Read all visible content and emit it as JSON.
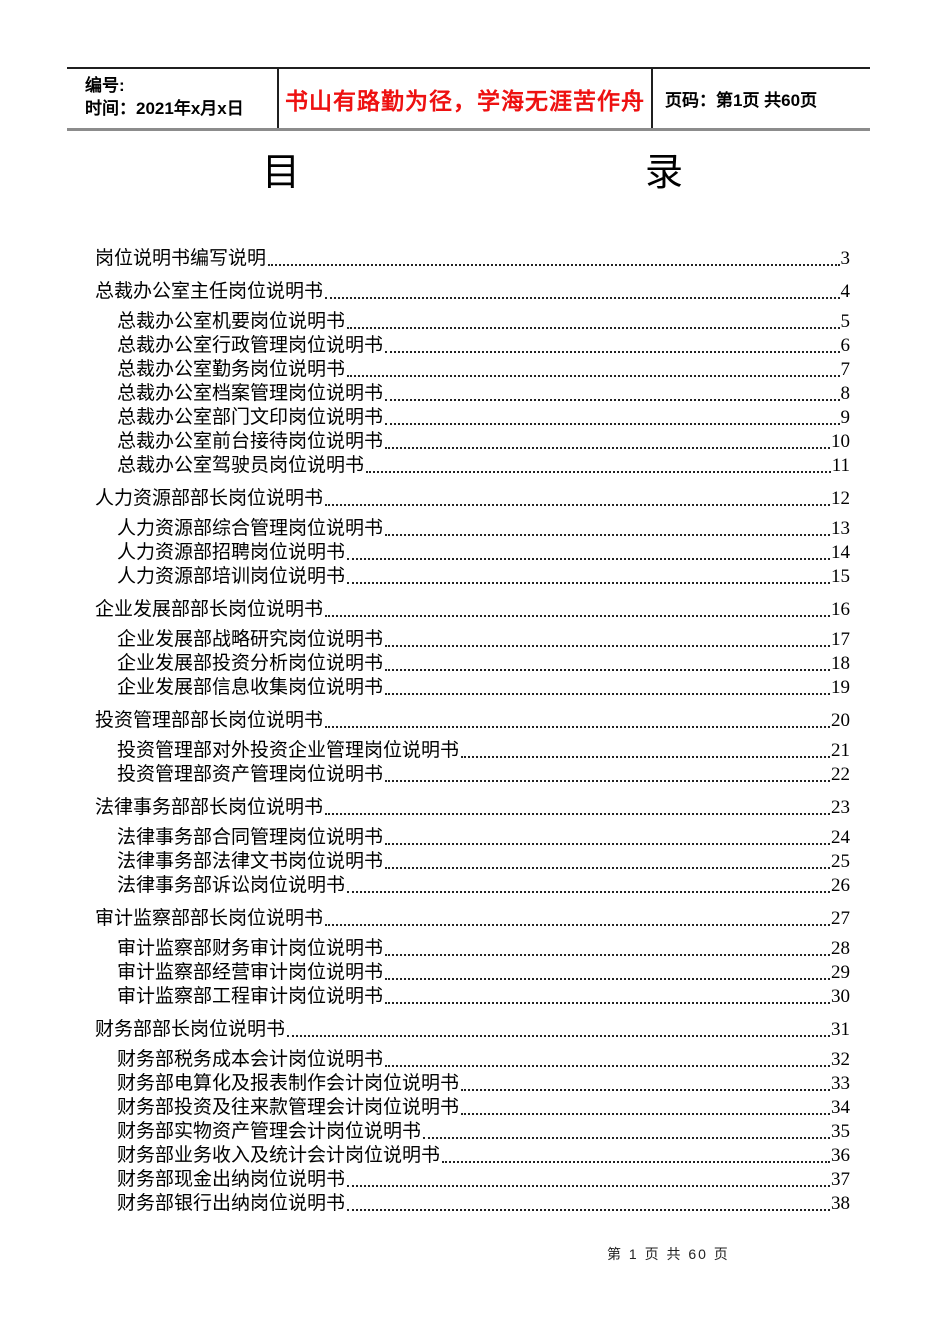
{
  "header": {
    "number_label": "编号:",
    "time_label": "时间：2021年x月x日",
    "motto": "书山有路勤为径，学海无涯苦作舟",
    "page_label": "页码：第1页 共60页"
  },
  "title": {
    "left_char": "目",
    "right_char": "录"
  },
  "toc": {
    "entries": [
      {
        "text": "岗位说明书编写说明",
        "page": "3",
        "level": 1
      },
      {
        "text": "总裁办公室主任岗位说明书",
        "page": "4",
        "level": 1
      },
      {
        "text": "总裁办公室机要岗位说明书",
        "page": "5",
        "level": 2
      },
      {
        "text": "总裁办公室行政管理岗位说明书",
        "page": "6",
        "level": 2
      },
      {
        "text": "总裁办公室勤务岗位说明书",
        "page": "7",
        "level": 2
      },
      {
        "text": "总裁办公室档案管理岗位说明书",
        "page": "8",
        "level": 2
      },
      {
        "text": "总裁办公室部门文印岗位说明书",
        "page": "9",
        "level": 2
      },
      {
        "text": "总裁办公室前台接待岗位说明书",
        "page": "10",
        "level": 2
      },
      {
        "text": "总裁办公室驾驶员岗位说明书",
        "page": "11",
        "level": 2
      },
      {
        "text": "人力资源部部长岗位说明书",
        "page": "12",
        "level": 1
      },
      {
        "text": "人力资源部综合管理岗位说明书",
        "page": "13",
        "level": 2
      },
      {
        "text": "人力资源部招聘岗位说明书",
        "page": "14",
        "level": 2
      },
      {
        "text": "人力资源部培训岗位说明书",
        "page": "15",
        "level": 2
      },
      {
        "text": "企业发展部部长岗位说明书",
        "page": "16",
        "level": 1
      },
      {
        "text": "企业发展部战略研究岗位说明书",
        "page": "17",
        "level": 2
      },
      {
        "text": "企业发展部投资分析岗位说明书",
        "page": "18",
        "level": 2
      },
      {
        "text": "企业发展部信息收集岗位说明书",
        "page": "19",
        "level": 2
      },
      {
        "text": "投资管理部部长岗位说明书",
        "page": "20",
        "level": 1
      },
      {
        "text": "投资管理部对外投资企业管理岗位说明书",
        "page": "21",
        "level": 2
      },
      {
        "text": "投资管理部资产管理岗位说明书",
        "page": "22",
        "level": 2
      },
      {
        "text": "法律事务部部长岗位说明书",
        "page": "23",
        "level": 1
      },
      {
        "text": "法律事务部合同管理岗位说明书",
        "page": "24",
        "level": 2
      },
      {
        "text": "法律事务部法律文书岗位说明书",
        "page": "25",
        "level": 2
      },
      {
        "text": "法律事务部诉讼岗位说明书",
        "page": "26",
        "level": 2
      },
      {
        "text": "审计监察部部长岗位说明书",
        "page": "27",
        "level": 1
      },
      {
        "text": "审计监察部财务审计岗位说明书",
        "page": "28",
        "level": 2
      },
      {
        "text": "审计监察部经营审计岗位说明书",
        "page": "29",
        "level": 2
      },
      {
        "text": "审计监察部工程审计岗位说明书",
        "page": "30",
        "level": 2
      },
      {
        "text": "财务部部长岗位说明书",
        "page": "31",
        "level": 1
      },
      {
        "text": "财务部税务成本会计岗位说明书",
        "page": "32",
        "level": 2
      },
      {
        "text": "财务部电算化及报表制作会计岗位说明书",
        "page": "33",
        "level": 2
      },
      {
        "text": "财务部投资及往来款管理会计岗位说明书",
        "page": "34",
        "level": 2
      },
      {
        "text": "财务部实物资产管理会计岗位说明书",
        "page": "35",
        "level": 2
      },
      {
        "text": "财务部业务收入及统计会计岗位说明书",
        "page": "36",
        "level": 2
      },
      {
        "text": "财务部现金出纳岗位说明书",
        "page": "37",
        "level": 2
      },
      {
        "text": "财务部银行出纳岗位说明书",
        "page": "38",
        "level": 2
      }
    ]
  },
  "footer": {
    "page_info": "第 1 页 共 60 页"
  },
  "colors": {
    "motto": "#ee1111",
    "text": "#000000",
    "header_border_top": "#1f1f1f",
    "header_border_bottom": "#8c8c8c"
  }
}
